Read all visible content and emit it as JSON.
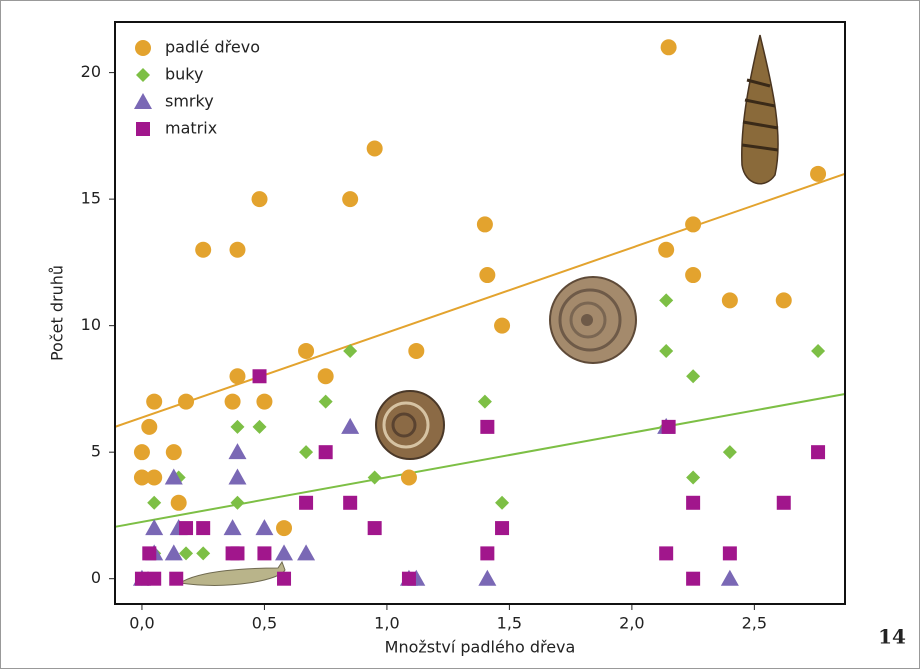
{
  "chart_data": {
    "type": "scatter",
    "xlabel": "Množství padlého dřeva",
    "ylabel": "Počet druhů",
    "xlim": [
      -0.11,
      2.87
    ],
    "ylim": [
      -1,
      22
    ],
    "xticks": [
      {
        "value": 0,
        "label": "0,0"
      },
      {
        "value": 0.5,
        "label": "0,5"
      },
      {
        "value": 1,
        "label": "1,0"
      },
      {
        "value": 1.5,
        "label": "1,5"
      },
      {
        "value": 2,
        "label": "2,0"
      },
      {
        "value": 2.5,
        "label": "2,5"
      }
    ],
    "yticks": [
      0,
      5,
      10,
      15,
      20
    ],
    "legend": "upper left",
    "series": [
      {
        "name": "padlé dřevo",
        "color": "#e3a32e",
        "marker": "circle",
        "x": [
          0,
          0,
          0.03,
          0.05,
          0.05,
          0.13,
          0.15,
          0.18,
          0.25,
          0.39,
          0.39,
          0.37,
          0.5,
          0.48,
          0.58,
          0.67,
          0.75,
          0.85,
          0.95,
          1.09,
          1.12,
          1.4,
          1.41,
          1.47,
          2.15,
          2.14,
          2.25,
          2.25,
          2.4,
          2.62,
          2.76
        ],
        "values": [
          4,
          5,
          6,
          7,
          4,
          5,
          3,
          7,
          13,
          13,
          8,
          7,
          7,
          15,
          2,
          9,
          8,
          15,
          17,
          4,
          9,
          14,
          12,
          10,
          21,
          13,
          14,
          12,
          11,
          11,
          16
        ]
      },
      {
        "name": "buky",
        "color": "#7dbf45",
        "marker": "diamond",
        "x": [
          0,
          0.05,
          0.05,
          0.15,
          0.18,
          0.25,
          0.39,
          0.39,
          0.48,
          0.67,
          0.75,
          0.85,
          0.95,
          1.4,
          1.47,
          2.14,
          2.14,
          2.14,
          2.25,
          2.25,
          2.4,
          2.76
        ],
        "values": [
          0,
          3,
          1,
          4,
          1,
          1,
          6,
          3,
          6,
          5,
          7,
          9,
          4,
          7,
          3,
          11,
          9,
          6,
          8,
          4,
          5,
          9
        ]
      },
      {
        "name": "smrky",
        "color": "#7a68b5",
        "marker": "triangle",
        "x": [
          0,
          0.05,
          0.05,
          0.13,
          0.15,
          0.13,
          0.37,
          0.39,
          0.39,
          0.5,
          0.58,
          0.67,
          0.85,
          1.09,
          1.12,
          1.41,
          2.14,
          2.4
        ],
        "values": [
          0,
          2,
          1,
          4,
          2,
          1,
          2,
          5,
          4,
          2,
          1,
          1,
          6,
          0,
          0,
          0,
          6,
          0
        ]
      },
      {
        "name": "matrix",
        "color": "#a1168c",
        "marker": "square",
        "x": [
          0,
          0.03,
          0.05,
          0.14,
          0.18,
          0.25,
          0.37,
          0.39,
          0.48,
          0.5,
          0.58,
          0.67,
          0.75,
          0.85,
          0.95,
          1.09,
          1.41,
          1.41,
          1.47,
          2.14,
          2.15,
          2.25,
          2.25,
          2.4,
          2.62,
          2.76
        ],
        "values": [
          0,
          1,
          0,
          0,
          2,
          2,
          1,
          1,
          8,
          1,
          0,
          3,
          5,
          3,
          2,
          0,
          6,
          1,
          2,
          1,
          6,
          3,
          0,
          1,
          3,
          5
        ]
      }
    ],
    "trend_lines": [
      {
        "color": "#e3a32e",
        "x": [
          -0.11,
          2.87
        ],
        "values": [
          6.0,
          16.0
        ]
      },
      {
        "color": "#7dbf45",
        "x": [
          -0.11,
          2.87
        ],
        "values": [
          2.05,
          7.3
        ]
      }
    ]
  },
  "page_number": "14"
}
